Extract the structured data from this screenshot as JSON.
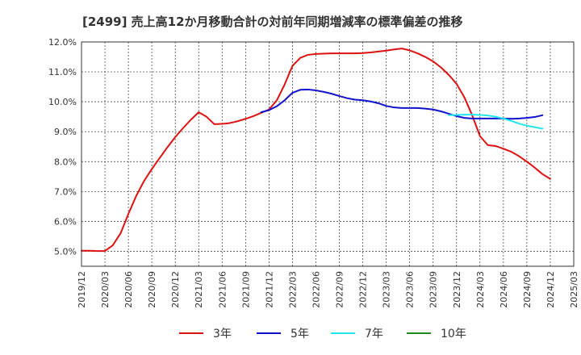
{
  "chart_data": {
    "type": "line",
    "title": "[2499]  売上高12か月移動合計の対前年同期増減率の標準偏差の推移",
    "xlabel": "",
    "ylabel": "",
    "ylim": [
      4.5,
      12.0
    ],
    "xlim": [
      "2019-12",
      "2025-03"
    ],
    "grid": true,
    "legend_position": "bottom",
    "x_ticks": [
      "2019/12",
      "2020/03",
      "2020/06",
      "2020/09",
      "2020/12",
      "2021/03",
      "2021/06",
      "2021/09",
      "2021/12",
      "2022/03",
      "2022/06",
      "2022/09",
      "2022/12",
      "2023/03",
      "2023/06",
      "2023/09",
      "2023/12",
      "2024/03",
      "2024/06",
      "2024/09",
      "2024/12",
      "2025/03"
    ],
    "y_ticks": [
      5.0,
      6.0,
      7.0,
      8.0,
      9.0,
      10.0,
      11.0,
      12.0
    ],
    "y_tick_labels": [
      "5.0%",
      "6.0%",
      "7.0%",
      "8.0%",
      "9.0%",
      "10.0%",
      "11.0%",
      "12.0%"
    ],
    "series": [
      {
        "name": "3年",
        "color": "#dd1111",
        "start": "2019-12",
        "values": [
          5.02,
          5.02,
          5.01,
          5.01,
          5.2,
          5.6,
          6.25,
          6.85,
          7.35,
          7.75,
          8.12,
          8.48,
          8.82,
          9.12,
          9.4,
          9.65,
          9.5,
          9.25,
          9.26,
          9.29,
          9.35,
          9.43,
          9.52,
          9.63,
          9.74,
          10.05,
          10.58,
          11.2,
          11.47,
          11.57,
          11.6,
          11.61,
          11.62,
          11.62,
          11.62,
          11.62,
          11.63,
          11.65,
          11.68,
          11.71,
          11.75,
          11.78,
          11.72,
          11.62,
          11.5,
          11.35,
          11.15,
          10.9,
          10.6,
          10.15,
          9.55,
          8.85,
          8.55,
          8.52,
          8.43,
          8.33,
          8.18,
          8.0,
          7.8,
          7.58,
          7.42
        ]
      },
      {
        "name": "5年",
        "color": "#1111cc",
        "start": "2021-11",
        "values": [
          9.65,
          9.72,
          9.85,
          10.05,
          10.3,
          10.4,
          10.41,
          10.38,
          10.33,
          10.27,
          10.19,
          10.12,
          10.07,
          10.05,
          10.01,
          9.95,
          9.86,
          9.81,
          9.79,
          9.79,
          9.79,
          9.77,
          9.74,
          9.68,
          9.6,
          9.52,
          9.46,
          9.44,
          9.44,
          9.44,
          9.44,
          9.44,
          9.43,
          9.44,
          9.46,
          9.49,
          9.55
        ]
      },
      {
        "name": "7年",
        "color": "#22e5ee",
        "start": "2023-11",
        "values": [
          9.55,
          9.56,
          9.57,
          9.57,
          9.56,
          9.54,
          9.5,
          9.44,
          9.36,
          9.27,
          9.2,
          9.15,
          9.1
        ]
      },
      {
        "name": "10年",
        "color": "#228822",
        "start": "2024-12",
        "values": []
      }
    ]
  }
}
